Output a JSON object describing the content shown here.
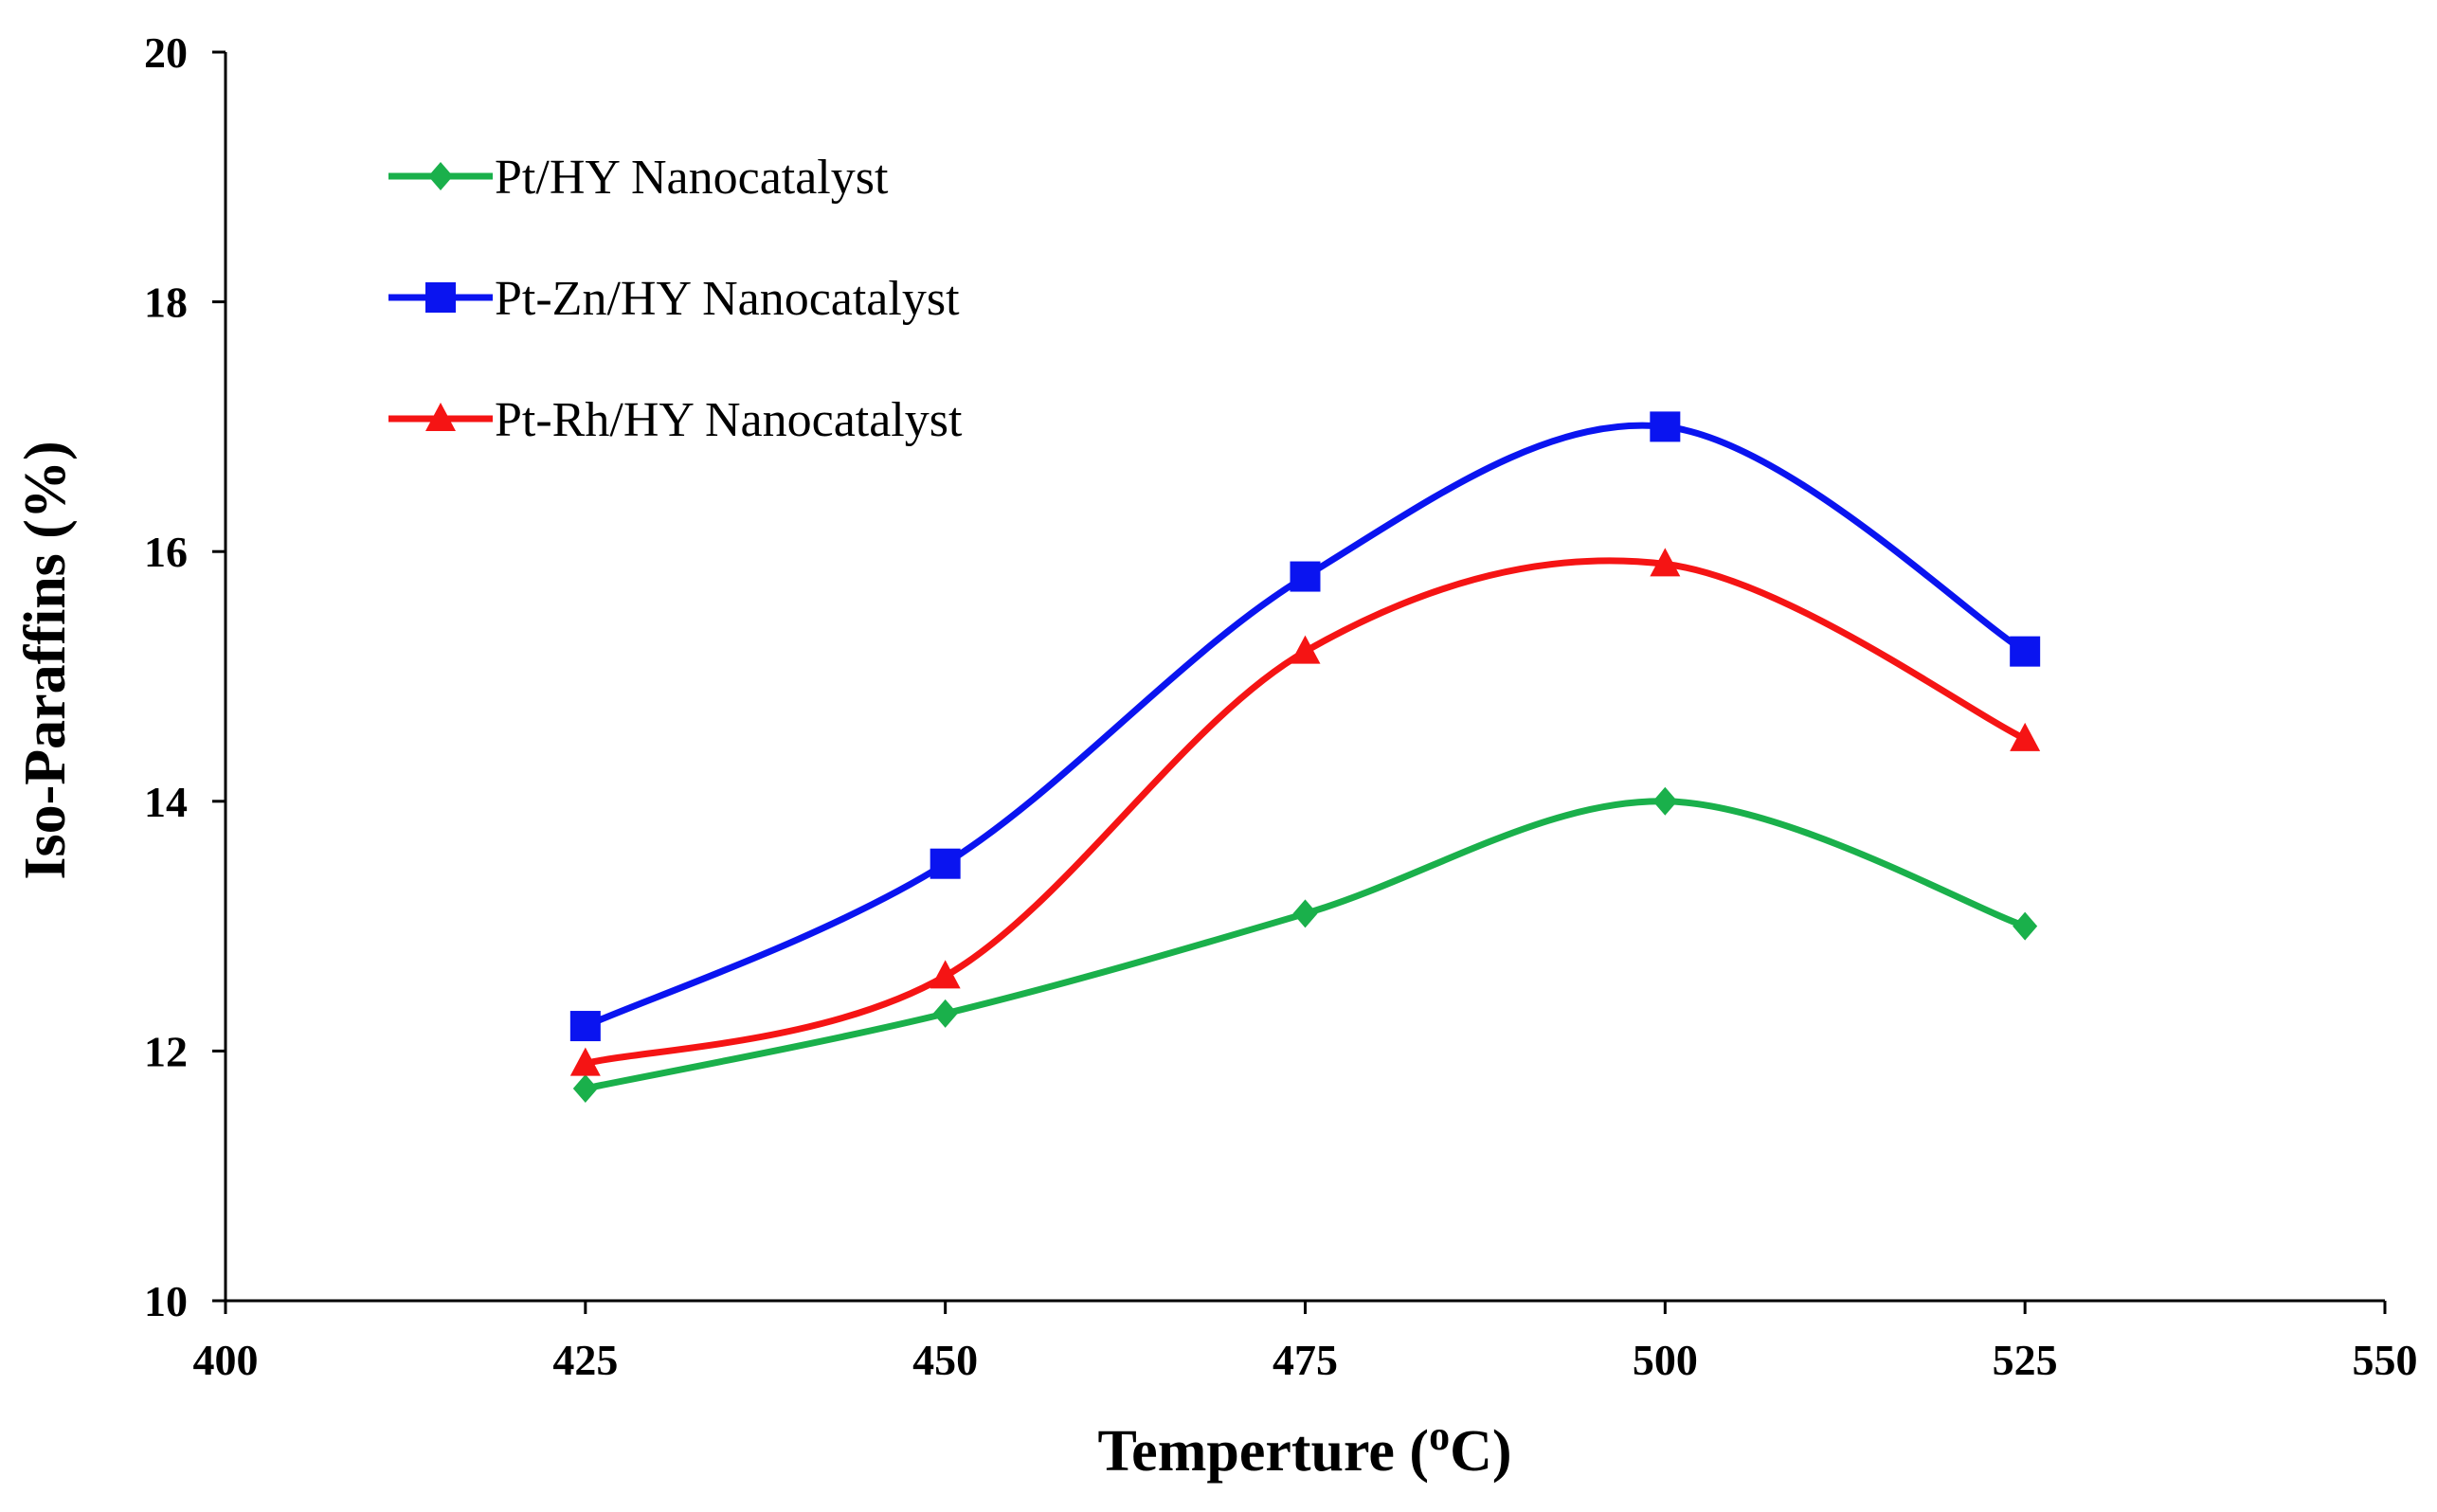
{
  "chart_data": {
    "type": "line",
    "title": "",
    "xlabel": {
      "main": "Temperture (",
      "superscript": "o",
      "unit": "C)"
    },
    "ylabel": "Iso-Paraffins (%)",
    "xlim": [
      400,
      550
    ],
    "ylim": [
      10,
      20
    ],
    "xticks": [
      "400",
      "425",
      "450",
      "475",
      "500",
      "525",
      "550"
    ],
    "yticks": [
      "10",
      "12",
      "14",
      "16",
      "18",
      "20"
    ],
    "x": [
      425,
      450,
      475,
      500,
      525
    ],
    "smooth": true,
    "grid": false,
    "legend_position": "top-left",
    "series": [
      {
        "name": "Pt/HY Nanocatalyst",
        "color": "#1ab04b",
        "marker": "diamond",
        "values": [
          11.7,
          12.3,
          13.1,
          14.0,
          13.0
        ]
      },
      {
        "name": "Pt-Zn/HY Nanocatalyst",
        "color": "#0a14f0",
        "marker": "square",
        "values": [
          12.2,
          13.5,
          15.8,
          17.0,
          15.2
        ]
      },
      {
        "name": "Pt-Rh/HY Nanocatalyst",
        "color": "#f51414",
        "marker": "triangle",
        "values": [
          11.9,
          12.6,
          15.2,
          15.9,
          14.5
        ]
      }
    ]
  }
}
